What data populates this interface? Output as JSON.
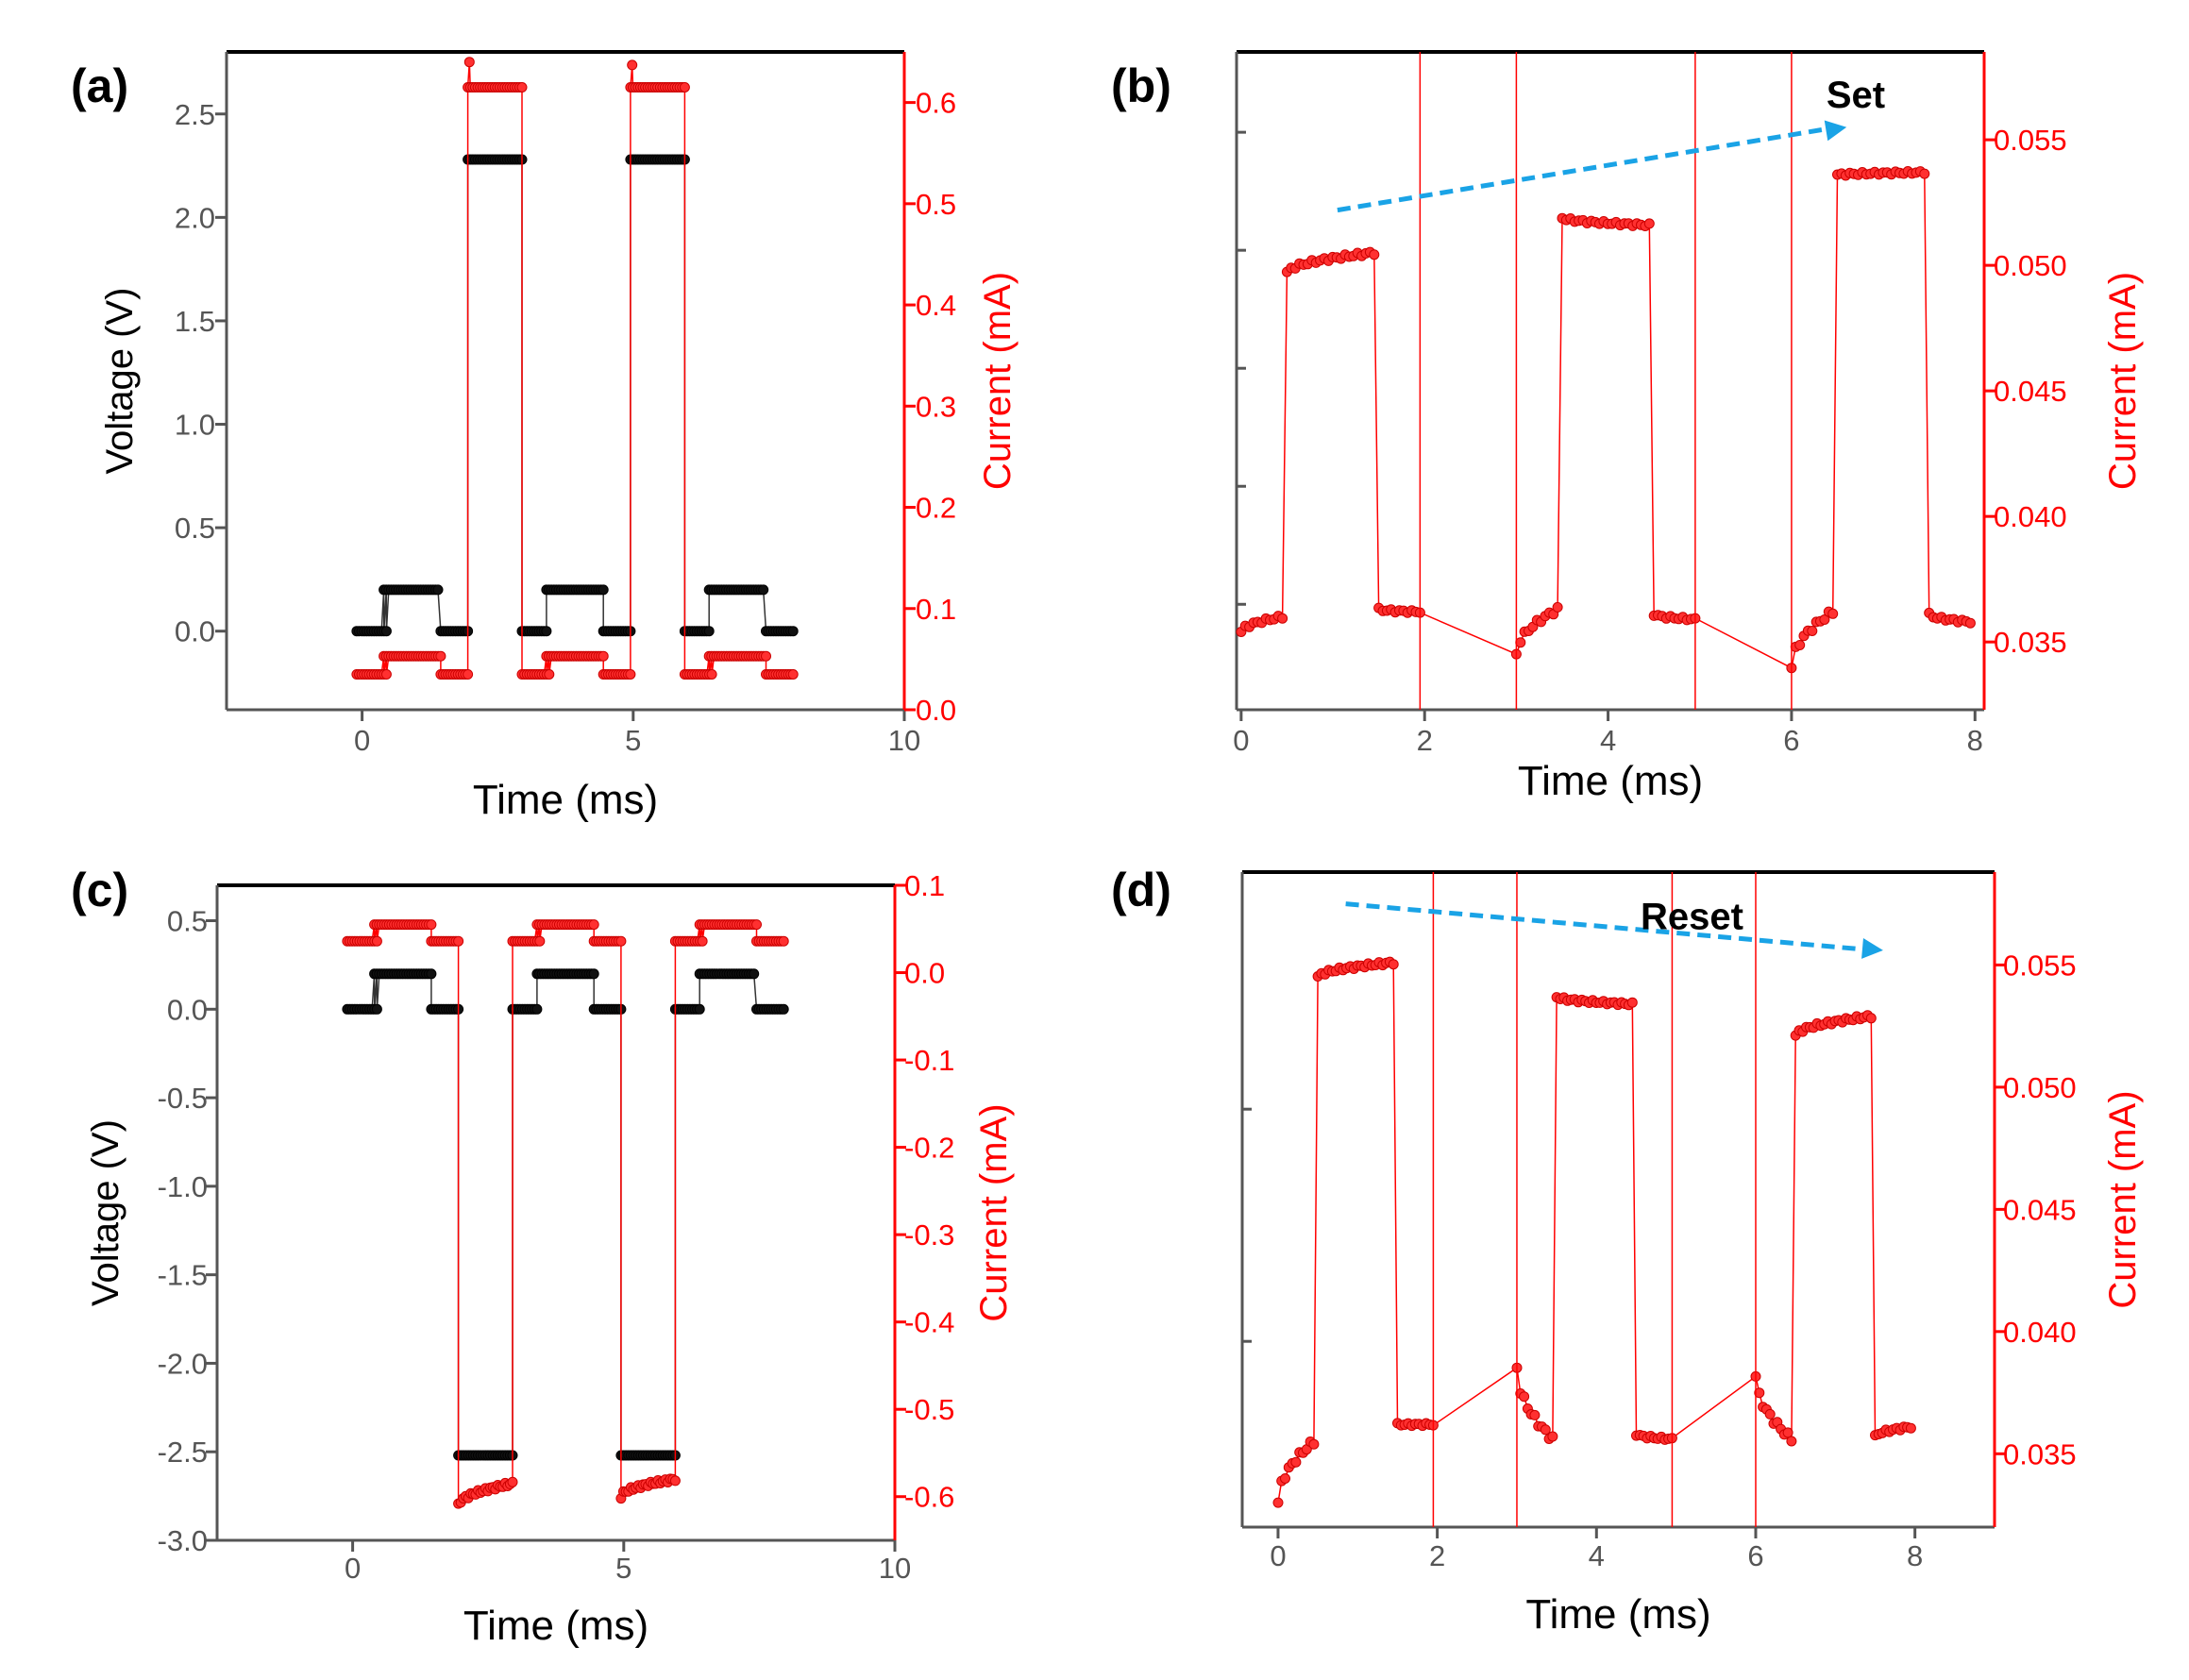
{
  "colors": {
    "voltage": "#000000",
    "current": "#ff0000",
    "axis_left": "#555555",
    "arrow": "#1aa3e6"
  },
  "chart_data": [
    {
      "panel": "(a)",
      "type": "line",
      "xlabel": "Time (ms)",
      "ylabel_left": "Voltage (V)",
      "ylabel_right": "Current (mA)",
      "xlim": [
        -2.5,
        10
      ],
      "xticks": [
        0,
        5,
        10
      ],
      "xtick_labels": [
        "0",
        "5",
        "10"
      ],
      "ylim_left": [
        -0.38,
        2.8
      ],
      "yticks_left": [
        0.0,
        0.5,
        1.0,
        1.5,
        2.0,
        2.5
      ],
      "ytick_labels_left": [
        "0.0",
        "0.5",
        "1.0",
        "1.5",
        "2.0",
        "2.5"
      ],
      "ylim_right": [
        0,
        0.65
      ],
      "yticks_right": [
        0.0,
        0.1,
        0.2,
        0.3,
        0.4,
        0.5,
        0.6
      ],
      "ytick_labels_right": [
        "0.0",
        "0.1",
        "0.2",
        "0.3",
        "0.4",
        "0.5",
        "0.6"
      ],
      "series": [
        {
          "name": "Voltage",
          "axis": "left",
          "color": "#000000",
          "segments": [
            {
              "x0": -0.1,
              "x1": 0.45,
              "y": 0.0
            },
            {
              "x0": 0.4,
              "x1": 1.4,
              "y": 0.2
            },
            {
              "x0": 1.45,
              "x1": 1.95,
              "y": 0.0
            },
            {
              "x0": 1.95,
              "x1": 2.95,
              "y": 2.28
            },
            {
              "x0": 2.95,
              "x1": 3.4,
              "y": 0.0
            },
            {
              "x0": 3.4,
              "x1": 4.45,
              "y": 0.2
            },
            {
              "x0": 4.45,
              "x1": 4.95,
              "y": 0.0
            },
            {
              "x0": 4.95,
              "x1": 5.95,
              "y": 2.28
            },
            {
              "x0": 5.95,
              "x1": 6.4,
              "y": 0.0
            },
            {
              "x0": 6.4,
              "x1": 7.4,
              "y": 0.2
            },
            {
              "x0": 7.45,
              "x1": 7.95,
              "y": 0.0
            }
          ]
        },
        {
          "name": "Current",
          "axis": "right",
          "color": "#ff0000",
          "segments": [
            {
              "x0": -0.1,
              "x1": 0.45,
              "y": 0.035
            },
            {
              "x0": 0.4,
              "x1": 1.45,
              "y": 0.053
            },
            {
              "x0": 1.45,
              "x1": 1.95,
              "y": 0.035
            },
            {
              "x0": 1.95,
              "x1": 2.95,
              "y": 0.615
            },
            {
              "x0": 2.95,
              "x1": 3.45,
              "y": 0.035
            },
            {
              "x0": 3.4,
              "x1": 4.45,
              "y": 0.053
            },
            {
              "x0": 4.45,
              "x1": 4.95,
              "y": 0.035
            },
            {
              "x0": 4.95,
              "x1": 5.95,
              "y": 0.615
            },
            {
              "x0": 5.95,
              "x1": 6.45,
              "y": 0.035
            },
            {
              "x0": 6.4,
              "x1": 7.45,
              "y": 0.053
            },
            {
              "x0": 7.45,
              "x1": 7.95,
              "y": 0.035
            }
          ],
          "peaks": [
            {
              "x": 1.98,
              "y": 0.64
            },
            {
              "x": 4.98,
              "y": 0.637
            }
          ]
        }
      ]
    },
    {
      "panel": "(b)",
      "type": "line",
      "xlabel": "Time (ms)",
      "ylabel_right": "Current (mA)",
      "xlim": [
        -0.05,
        8.1
      ],
      "xticks": [
        0,
        2,
        4,
        6,
        8
      ],
      "xtick_labels": [
        "0",
        "2",
        "4",
        "6",
        "8"
      ],
      "ylim_right": [
        0.0323,
        0.0585
      ],
      "yticks_right": [
        0.035,
        0.04,
        0.045,
        0.05,
        0.055
      ],
      "ytick_labels_right": [
        "0.035",
        "0.040",
        "0.045",
        "0.050",
        "0.055"
      ],
      "left_minor_ticks": [
        0.0365,
        0.0412,
        0.0459,
        0.0506,
        0.0553
      ],
      "annotation": {
        "text": "Set",
        "arrow_from": [
          1.05,
          0.0522
        ],
        "arrow_to": [
          6.6,
          0.0555
        ],
        "text_at": [
          6.7,
          0.0568
        ]
      },
      "series": [
        {
          "name": "Current",
          "axis": "right",
          "color": "#ff0000",
          "segments": [
            {
              "x0": 0.0,
              "x1": 0.45,
              "y0": 0.0354,
              "y1": 0.036
            },
            {
              "x0": 0.5,
              "x1": 1.45,
              "y0": 0.0497,
              "y1": 0.0505
            },
            {
              "x0": 1.5,
              "x1": 1.95,
              "y0": 0.0363,
              "y1": 0.0362
            },
            {
              "x0": 3.0,
              "x1": 3.45,
              "y0": 0.0345,
              "y1": 0.0363
            },
            {
              "x0": 3.5,
              "x1": 4.45,
              "y0": 0.0519,
              "y1": 0.0516
            },
            {
              "x0": 4.5,
              "x1": 4.95,
              "y0": 0.0361,
              "y1": 0.0359
            },
            {
              "x0": 6.0,
              "x1": 6.45,
              "y0": 0.034,
              "y1": 0.0362
            },
            {
              "x0": 6.5,
              "x1": 7.45,
              "y0": 0.0536,
              "y1": 0.0537
            },
            {
              "x0": 7.5,
              "x1": 7.95,
              "y0": 0.0361,
              "y1": 0.0358
            }
          ],
          "spikes_x": [
            1.95,
            3.0,
            4.95,
            6.0
          ]
        }
      ]
    },
    {
      "panel": "(c)",
      "type": "line",
      "xlabel": "Time (ms)",
      "ylabel_left": "Voltage (V)",
      "ylabel_right": "Current (mA)",
      "xlim": [
        -2.5,
        10
      ],
      "xticks": [
        0,
        5,
        10
      ],
      "xtick_labels": [
        "0",
        "5",
        "10"
      ],
      "ylim_left": [
        -3.0,
        0.7
      ],
      "yticks_left": [
        0.5,
        0.0,
        -0.5,
        -1.0,
        -1.5,
        -2.0,
        -2.5,
        -3.0
      ],
      "ytick_labels_left": [
        "0.5",
        "0.0",
        "-0.5",
        "-1.0",
        "-1.5",
        "-2.0",
        "-2.5",
        "-3.0"
      ],
      "ylim_right": [
        -0.65,
        0.1
      ],
      "yticks_right": [
        0.1,
        0.0,
        -0.1,
        -0.2,
        -0.3,
        -0.4,
        -0.5,
        -0.6
      ],
      "ytick_labels_right": [
        "0.1",
        "0.0",
        "-0.1",
        "-0.2",
        "-0.3",
        "-0.4",
        "-0.5",
        "-0.6"
      ],
      "series": [
        {
          "name": "Voltage",
          "axis": "left",
          "color": "#000000",
          "segments": [
            {
              "x0": -0.1,
              "x1": 0.45,
              "y": 0.0
            },
            {
              "x0": 0.4,
              "x1": 1.45,
              "y": 0.2
            },
            {
              "x0": 1.45,
              "x1": 1.95,
              "y": 0.0
            },
            {
              "x0": 1.95,
              "x1": 2.95,
              "y": -2.52
            },
            {
              "x0": 2.95,
              "x1": 3.4,
              "y": 0.0
            },
            {
              "x0": 3.4,
              "x1": 4.45,
              "y": 0.2
            },
            {
              "x0": 4.45,
              "x1": 4.95,
              "y": 0.0
            },
            {
              "x0": 4.95,
              "x1": 5.95,
              "y": -2.52
            },
            {
              "x0": 5.95,
              "x1": 6.4,
              "y": 0.0
            },
            {
              "x0": 6.4,
              "x1": 7.4,
              "y": 0.2
            },
            {
              "x0": 7.45,
              "x1": 7.95,
              "y": 0.0
            }
          ]
        },
        {
          "name": "Current",
          "axis": "right",
          "color": "#ff0000",
          "segments": [
            {
              "x0": -0.1,
              "x1": 0.45,
              "y": 0.036
            },
            {
              "x0": 0.4,
              "x1": 1.45,
              "y": 0.055
            },
            {
              "x0": 1.45,
              "x1": 1.95,
              "y": 0.036
            },
            {
              "x0": 1.95,
              "x1": 2.95,
              "y0": -0.61,
              "y1": -0.585
            },
            {
              "x0": 2.95,
              "x1": 3.45,
              "y": 0.036
            },
            {
              "x0": 3.4,
              "x1": 4.45,
              "y": 0.055
            },
            {
              "x0": 4.45,
              "x1": 4.95,
              "y": 0.036
            },
            {
              "x0": 4.95,
              "x1": 5.95,
              "y0": -0.6,
              "y1": -0.58
            },
            {
              "x0": 5.95,
              "x1": 6.45,
              "y": 0.036
            },
            {
              "x0": 6.4,
              "x1": 7.45,
              "y": 0.055
            },
            {
              "x0": 7.45,
              "x1": 7.95,
              "y": 0.036
            }
          ]
        }
      ]
    },
    {
      "panel": "(d)",
      "type": "line",
      "xlabel": "Time (ms)",
      "ylabel_right": "Current (mA)",
      "xlim": [
        -0.45,
        9.0
      ],
      "xticks": [
        0,
        2,
        4,
        6,
        8
      ],
      "xtick_labels": [
        "0",
        "2",
        "4",
        "6",
        "8"
      ],
      "ylim_right": [
        0.032,
        0.0588
      ],
      "yticks_right": [
        0.035,
        0.04,
        0.045,
        0.05,
        0.055
      ],
      "ytick_labels_right": [
        "0.035",
        "0.040",
        "0.045",
        "0.050",
        "0.055"
      ],
      "left_minor_ticks": [
        0.0396,
        0.0491
      ],
      "annotation": {
        "text": "Reset",
        "arrow_from": [
          0.85,
          0.0575
        ],
        "arrow_to": [
          7.6,
          0.0556
        ],
        "text_at": [
          5.2,
          0.057
        ]
      },
      "series": [
        {
          "name": "Current",
          "axis": "right",
          "color": "#ff0000",
          "segments": [
            {
              "x0": 0.0,
              "x1": 0.45,
              "y0": 0.033,
              "y1": 0.0355
            },
            {
              "x0": 0.5,
              "x1": 1.45,
              "y0": 0.0545,
              "y1": 0.0551
            },
            {
              "x0": 1.5,
              "x1": 1.95,
              "y0": 0.0362,
              "y1": 0.0362
            },
            {
              "x0": 3.0,
              "x1": 3.45,
              "y0": 0.0385,
              "y1": 0.0356
            },
            {
              "x0": 3.5,
              "x1": 4.45,
              "y0": 0.0537,
              "y1": 0.0534
            },
            {
              "x0": 4.5,
              "x1": 4.95,
              "y0": 0.0358,
              "y1": 0.0356
            },
            {
              "x0": 6.0,
              "x1": 6.45,
              "y0": 0.0382,
              "y1": 0.0356
            },
            {
              "x0": 6.5,
              "x1": 7.45,
              "y0": 0.0521,
              "y1": 0.0529
            },
            {
              "x0": 7.5,
              "x1": 7.95,
              "y0": 0.0357,
              "y1": 0.0361
            }
          ],
          "spikes_x": [
            1.95,
            3.0,
            4.95,
            6.0
          ]
        }
      ]
    }
  ]
}
